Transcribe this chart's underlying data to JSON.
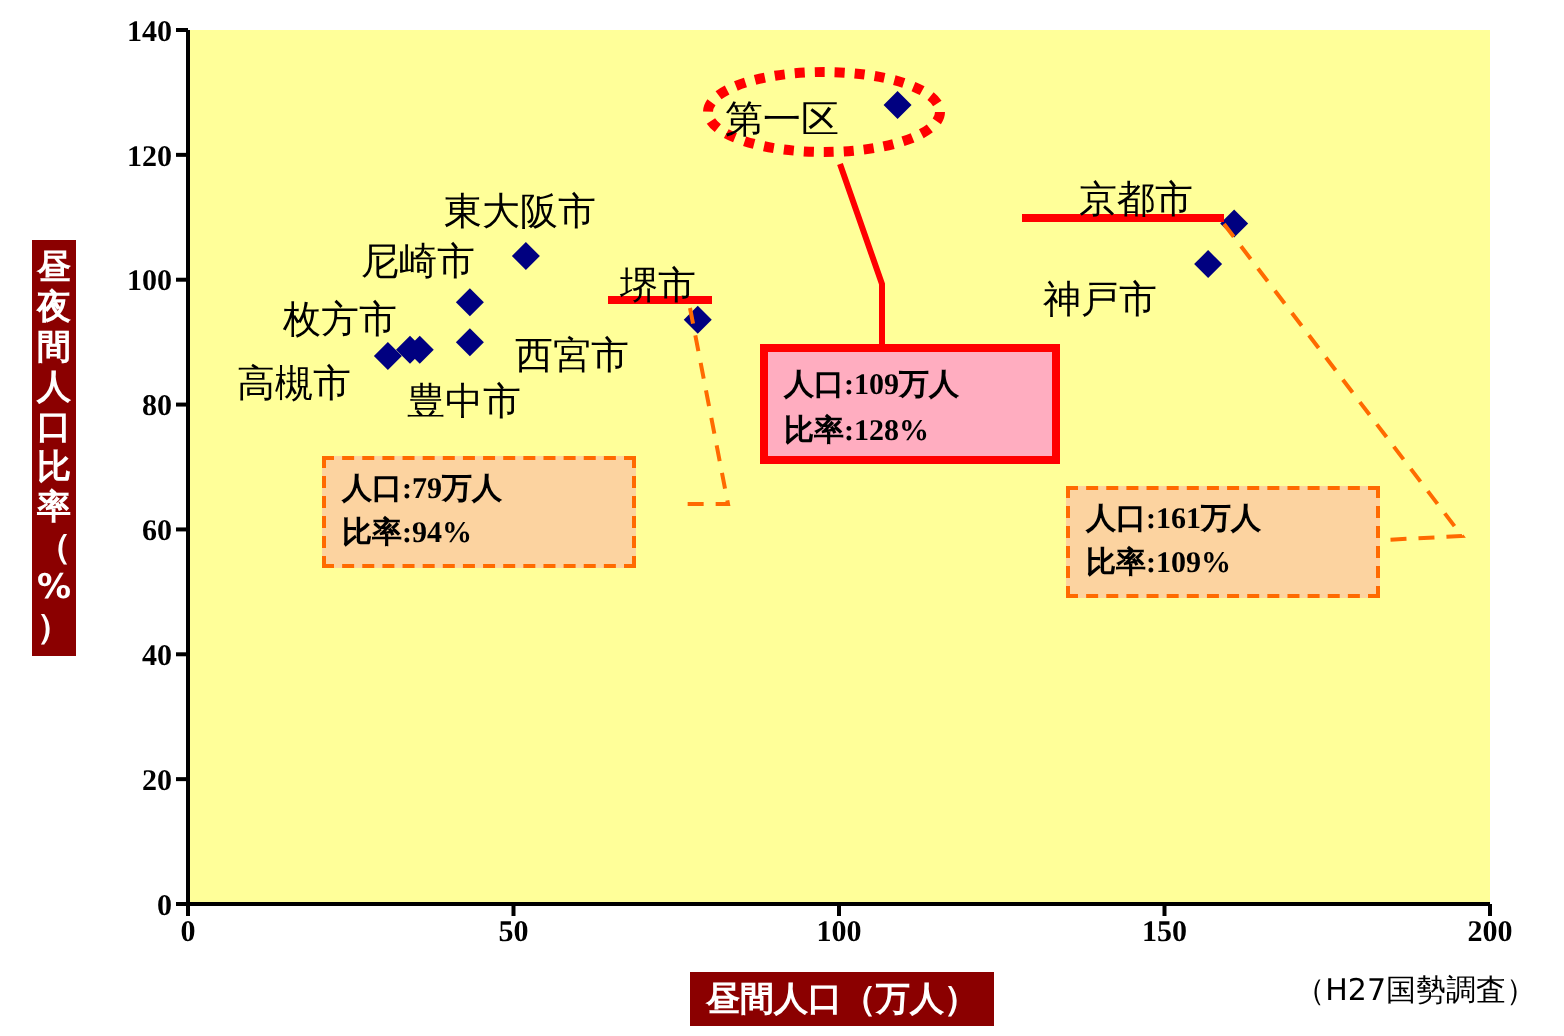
{
  "chart_data": {
    "type": "scatter",
    "xlabel": "昼間人口（万人）",
    "ylabel": "昼夜間人口比率（%）",
    "x": [
      30.7,
      34.1,
      35.6,
      43.3,
      43.3,
      51.9,
      78.3,
      109,
      156.7,
      160.7
    ],
    "series": [
      {
        "color": "#000080",
        "values": [
          87.8,
          88.8,
          88.8,
          90,
          96.4,
          103.8,
          93.6,
          128,
          102.5,
          109
        ]
      }
    ],
    "xlim": [
      0,
      200
    ],
    "xticks": [
      0,
      50,
      100,
      150,
      200
    ],
    "ylim": [
      0,
      140
    ],
    "yticks": [
      0,
      20,
      40,
      60,
      80,
      100,
      120,
      140
    ],
    "marker": "diamond",
    "grid": false,
    "annotations": [
      {
        "text": "高槻市",
        "x": 30.7,
        "y": 87.8
      },
      {
        "text": "豊中市",
        "x": 34.1,
        "y": 88.8
      },
      {
        "text": "枚方市",
        "x": 35.6,
        "y": 88.8
      },
      {
        "text": "西宮市",
        "x": 43.3,
        "y": 90
      },
      {
        "text": "尼崎市",
        "x": 43.3,
        "y": 96.4
      },
      {
        "text": "東大阪市",
        "x": 51.9,
        "y": 103.8
      },
      {
        "text": "堺市",
        "x": 78.3,
        "y": 93.6
      },
      {
        "text": "第一区",
        "x": 109,
        "y": 128
      },
      {
        "text": "神戸市",
        "x": 156.7,
        "y": 102.5
      },
      {
        "text": "京都市",
        "x": 160.7,
        "y": 109
      },
      "人口:79万人",
      "比率:94%",
      "人口:109万人",
      "比率:128%",
      "人口:161万人",
      "比率:109%",
      "（H27国勢調査）"
    ]
  }
}
